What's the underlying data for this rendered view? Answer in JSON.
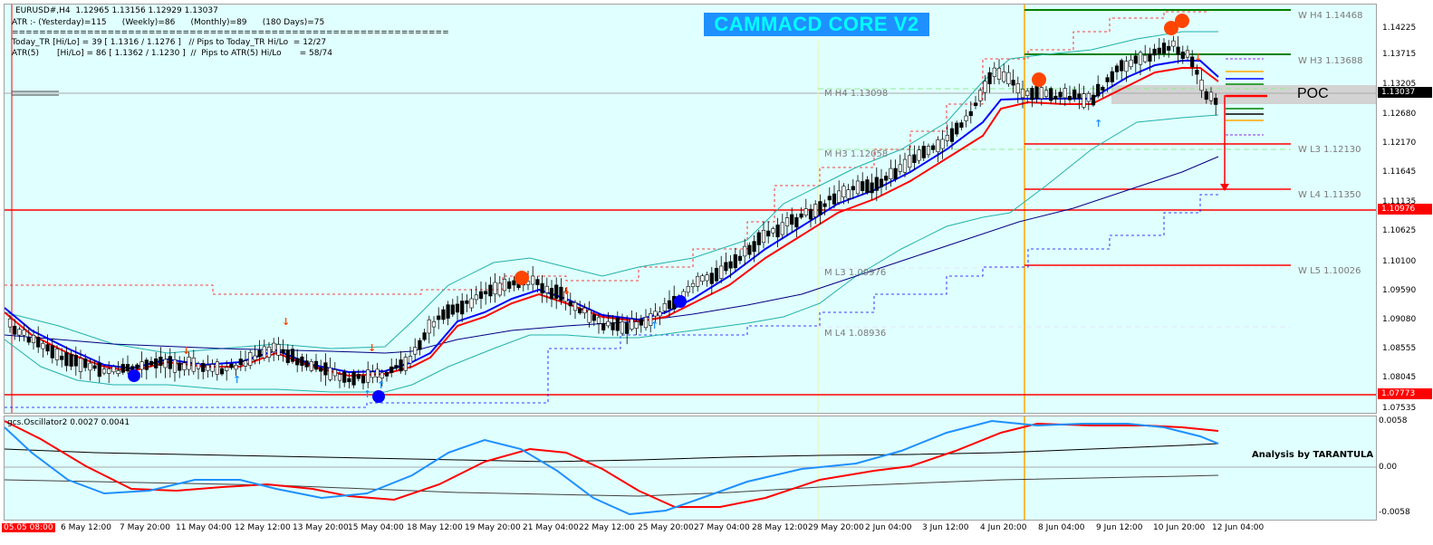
{
  "symbol_header": "EURUSD#,H4  1.12965 1.13156 1.12929 1.13037",
  "atr_line": "ATR :- (Yesterday)=115      (Weekly)=86      (Monthly)=89      (180 Days)=75",
  "separator_line": "================================================================",
  "today_tr_line": "Today_TR [Hi/Lo] = 39 [ 1.1316 / 1.1276 ]   // Pips to Today_TR Hi/Lo  = 12/27",
  "atr5_line": "ATR(5)       [Hi/Lo] = 86 [ 1.1362 / 1.1230 ]  //  Pips to ATR(5) Hi/Lo       = 58/74",
  "banner_title": "CAMMACD CORE V2",
  "poc_label": "POC",
  "osc_header": "gcs.Oscillator2 0.0027 0.0041",
  "credit": "Analysis by TARANTULA",
  "price_axis": [
    "1.14225",
    "1.13715",
    "1.13205",
    "1.12680",
    "1.12170",
    "1.11645",
    "1.11135",
    "1.10625",
    "1.10100",
    "1.09590",
    "1.09080",
    "1.08555",
    "1.08045",
    "1.07535"
  ],
  "current_price": "1.13037",
  "tag_1": "1.10976",
  "tag_2": "1.07773",
  "osc_axis": [
    "0.0058",
    "0.00",
    "-0.0058"
  ],
  "time_axis": [
    "05.05 08:00",
    "6 May 12:00",
    "7 May 20:00",
    "11 May 04:00",
    "12 May 12:00",
    "13 May 20:00",
    "15 May 04:00",
    "18 May 12:00",
    "19 May 20:00",
    "21 May 04:00",
    "22 May 12:00",
    "25 May 20:00",
    "27 May 04:00",
    "28 May 12:00",
    "29 May 20:00",
    "2 Jun 04:00",
    "3 Jun 12:00",
    "4 Jun 20:00",
    "8 Jun 04:00",
    "9 Jun 12:00",
    "10 Jun 20:00",
    "12 Jun 04:00"
  ],
  "levels": {
    "wh4": "W  H4 1.14468",
    "wh3": "W  H3 1.13688",
    "mh4": "M  H4 1.13098",
    "mh3": "M  H3 1.12058",
    "wl3": "W  L3 1.12130",
    "wl4": "W  L4 1.11350",
    "ml3": "M  L3 1.09976",
    "wl5": "W  L5 1.10026",
    "ml4": "M  L4 1.08936"
  },
  "colors": {
    "background": "#e0ffff",
    "ema_fast": "#0000ff",
    "ema_slow": "#ff0000",
    "bollinger": "#20b2aa",
    "signal_dot_red": "#ff4500",
    "signal_dot_blue": "#0000ff",
    "osc_blue": "#1e90ff",
    "osc_red": "#ff0000",
    "vertical_marker": "#ffa500"
  }
}
